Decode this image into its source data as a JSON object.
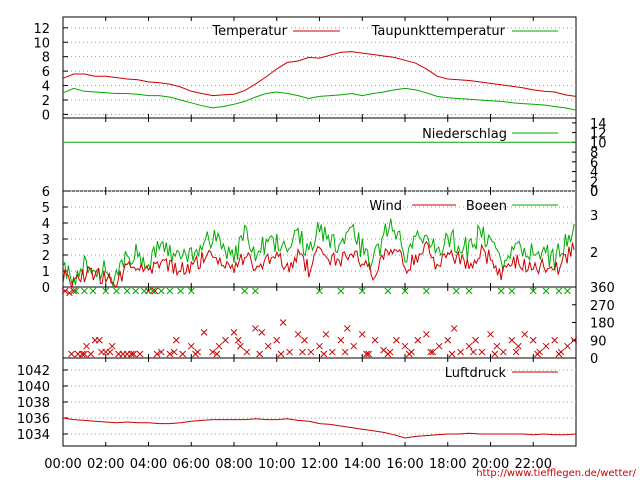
{
  "chart_data": [
    {
      "type": "line",
      "legend_placement": "top-right",
      "y_ticks": [
        "0",
        "2",
        "4",
        "6",
        "8",
        "10",
        "12"
      ],
      "ylim": [
        -0.5,
        13.5
      ],
      "grid": true,
      "series": [
        {
          "name": "Temperatur",
          "color": "#cc0000",
          "x_hours": [
            0,
            0.5,
            1,
            1.5,
            2,
            2.5,
            3,
            3.5,
            4,
            4.5,
            5,
            5.5,
            6,
            6.5,
            7,
            7.5,
            8,
            8.5,
            9,
            9.5,
            10,
            10.5,
            11,
            11.5,
            12,
            12.5,
            13,
            13.5,
            14,
            14.5,
            15,
            15.5,
            16,
            16.5,
            17,
            17.5,
            18,
            18.5,
            19,
            19.5,
            20,
            20.5,
            21,
            21.5,
            22,
            22.5,
            23,
            23.5,
            24
          ],
          "values": [
            5.0,
            5.6,
            5.6,
            5.3,
            5.3,
            5.1,
            4.9,
            4.8,
            4.5,
            4.4,
            4.2,
            3.8,
            3.2,
            2.9,
            2.6,
            2.7,
            2.8,
            3.3,
            4.2,
            5.2,
            6.3,
            7.2,
            7.4,
            7.9,
            7.8,
            8.2,
            8.6,
            8.7,
            8.5,
            8.3,
            8.1,
            7.9,
            7.5,
            7.1,
            6.3,
            5.3,
            4.9,
            4.8,
            4.7,
            4.5,
            4.3,
            4.1,
            3.9,
            3.7,
            3.4,
            3.2,
            3.1,
            2.7,
            2.5
          ]
        },
        {
          "name": "Taupunkttemperatur",
          "color": "#00aa00",
          "x_hours": [
            0,
            0.5,
            1,
            1.5,
            2,
            2.5,
            3,
            3.5,
            4,
            4.5,
            5,
            5.5,
            6,
            6.5,
            7,
            7.5,
            8,
            8.5,
            9,
            9.5,
            10,
            10.5,
            11,
            11.5,
            12,
            12.5,
            13,
            13.5,
            14,
            14.5,
            15,
            15.5,
            16,
            16.5,
            17,
            17.5,
            18,
            18.5,
            19,
            19.5,
            20,
            20.5,
            21,
            21.5,
            22,
            22.5,
            23,
            23.5,
            24
          ],
          "values": [
            3.0,
            3.6,
            3.2,
            3.1,
            3.0,
            2.9,
            2.9,
            2.8,
            2.6,
            2.6,
            2.4,
            2.0,
            1.6,
            1.2,
            0.9,
            1.1,
            1.4,
            1.8,
            2.4,
            2.9,
            3.1,
            2.9,
            2.6,
            2.2,
            2.5,
            2.6,
            2.7,
            2.9,
            2.6,
            2.9,
            3.1,
            3.4,
            3.6,
            3.4,
            3.0,
            2.5,
            2.3,
            2.2,
            2.1,
            2.0,
            1.9,
            1.8,
            1.6,
            1.5,
            1.4,
            1.3,
            1.1,
            0.9,
            0.6
          ]
        }
      ]
    },
    {
      "type": "line",
      "legend_placement": "top-right",
      "right_ticks": [
        "0",
        "2",
        "4",
        "6",
        "8",
        "10",
        "12",
        "14"
      ],
      "ylim": [
        0,
        15
      ],
      "series": [
        {
          "name": "Niederschlag",
          "color": "#00aa00",
          "x_hours": [
            0,
            24
          ],
          "values": [
            10,
            10
          ]
        }
      ]
    },
    {
      "type": "line",
      "legend_placement": "top-right",
      "left_ticks": [
        "0",
        "1",
        "2",
        "3",
        "4",
        "5",
        "6"
      ],
      "right_ticks": [
        "0",
        "2",
        "3"
      ],
      "ylim": [
        0,
        6
      ],
      "grid": true,
      "series": [
        {
          "name": "Wind",
          "color": "#cc0000",
          "x_hours": [
            0,
            0.5,
            1,
            1.5,
            2,
            2.5,
            3,
            3.5,
            4,
            4.5,
            5,
            5.5,
            6,
            6.5,
            7,
            7.5,
            8,
            8.5,
            9,
            9.5,
            10,
            10.5,
            11,
            11.5,
            12,
            12.5,
            13,
            13.5,
            14,
            14.5,
            15,
            15.5,
            16,
            16.5,
            17,
            17.5,
            18,
            18.5,
            19,
            19.5,
            20,
            20.5,
            21,
            21.5,
            22,
            22.5,
            23,
            23.5,
            24
          ],
          "values": [
            0.7,
            0.1,
            0.8,
            0.9,
            0.5,
            0.2,
            1.2,
            1.4,
            0.9,
            1.6,
            1.3,
            1.0,
            1.4,
            1.7,
            2.1,
            1.5,
            1.1,
            2.0,
            1.3,
            1.6,
            1.9,
            1.2,
            2.2,
            1.1,
            2.5,
            1.8,
            1.6,
            2.3,
            1.4,
            0.8,
            2.1,
            2.5,
            1.2,
            1.9,
            2.4,
            1.3,
            2.0,
            1.7,
            1.4,
            2.2,
            1.8,
            0.8,
            1.6,
            1.5,
            1.1,
            1.3,
            0.9,
            1.8,
            2.6
          ]
        },
        {
          "name": "Boeen",
          "color": "#00aa00",
          "x_hours": [
            0,
            0.5,
            1,
            1.5,
            2,
            2.5,
            3,
            3.5,
            4,
            4.5,
            5,
            5.5,
            6,
            6.5,
            7,
            7.5,
            8,
            8.5,
            9,
            9.5,
            10,
            10.5,
            11,
            11.5,
            12,
            12.5,
            13,
            13.5,
            14,
            14.5,
            15,
            15.5,
            16,
            16.5,
            17,
            17.5,
            18,
            18.5,
            19,
            19.5,
            20,
            20.5,
            21,
            21.5,
            22,
            22.5,
            23,
            23.5,
            24
          ],
          "values": [
            1.2,
            0.4,
            1.5,
            1.3,
            0.9,
            0.5,
            1.9,
            2.1,
            1.4,
            2.4,
            2.0,
            1.5,
            2.2,
            2.6,
            3.2,
            2.3,
            1.8,
            3.3,
            2.1,
            2.7,
            2.8,
            2.0,
            3.5,
            2.0,
            3.8,
            3.0,
            2.6,
            3.4,
            2.4,
            1.3,
            3.3,
            3.8,
            2.0,
            3.0,
            3.6,
            2.1,
            3.2,
            2.7,
            2.3,
            3.4,
            3.0,
            1.4,
            2.6,
            2.6,
            1.9,
            2.3,
            1.6,
            2.9,
            4.0
          ]
        }
      ]
    },
    {
      "type": "scatter",
      "right_ticks": [
        "0",
        "90",
        "180",
        "270",
        "360"
      ],
      "ylim": [
        0,
        360
      ],
      "series": [
        {
          "name": "",
          "color": "#cc0000",
          "x_hours": [
            0.1,
            0.3,
            0.5,
            0.7,
            0.9,
            1.1,
            1.3,
            1.5,
            1.7,
            2.0,
            2.3,
            2.6,
            2.8,
            3.0,
            3.3,
            3.6,
            4.0,
            4.3,
            4.6,
            5.0,
            5.3,
            5.6,
            6.0,
            6.3,
            6.6,
            7.0,
            7.3,
            7.6,
            8.0,
            8.3,
            8.6,
            9.0,
            9.3,
            9.6,
            10.0,
            10.3,
            10.6,
            11.0,
            11.3,
            11.6,
            12.0,
            12.3,
            12.6,
            13.0,
            13.3,
            13.6,
            14.0,
            14.3,
            14.6,
            15.0,
            15.3,
            15.6,
            16.0,
            16.3,
            16.6,
            17.0,
            17.3,
            17.6,
            18.0,
            18.3,
            18.6,
            19.0,
            19.3,
            19.6,
            20.0,
            20.3,
            20.6,
            21.0,
            21.3,
            21.6,
            22.0,
            22.3,
            22.6,
            23.0,
            23.3,
            23.6,
            23.9,
            0.4,
            1.0,
            1.8,
            2.2,
            3.2,
            4.4,
            5.2,
            6.2,
            7.2,
            8.2,
            9.2,
            10.2,
            11.2,
            12.2,
            13.2,
            14.2,
            15.2,
            16.2,
            17.2,
            18.2,
            19.2,
            20.2,
            21.2,
            22.2,
            23.2
          ],
          "values": [
            360,
            330,
            360,
            20,
            0,
            60,
            0,
            90,
            90,
            30,
            60,
            0,
            0,
            10,
            0,
            0,
            360,
            360,
            30,
            0,
            90,
            0,
            60,
            30,
            130,
            30,
            60,
            90,
            130,
            60,
            30,
            150,
            130,
            60,
            90,
            180,
            30,
            120,
            90,
            30,
            60,
            120,
            30,
            90,
            150,
            60,
            120,
            0,
            90,
            40,
            30,
            90,
            60,
            30,
            90,
            120,
            30,
            60,
            90,
            150,
            30,
            60,
            90,
            30,
            120,
            60,
            30,
            90,
            60,
            120,
            90,
            30,
            60,
            90,
            30,
            60,
            90,
            0,
            0,
            30,
            30,
            0,
            0,
            30,
            0,
            0,
            90,
            0,
            0,
            30,
            0,
            30,
            0,
            0,
            0,
            30,
            0,
            30,
            0,
            30,
            0,
            0
          ]
        },
        {
          "name": "",
          "color": "#00aa00",
          "x_hours": [
            0.6,
            1.0,
            1.4,
            2.0,
            2.5,
            3.0,
            3.4,
            3.8,
            4.2,
            4.6,
            5.0,
            5.5,
            6.0,
            8.5,
            9.0,
            12.0,
            13.0,
            14.0,
            15.2,
            16.0,
            17.0,
            18.4,
            19.0,
            20.5,
            21.0,
            22.0,
            22.6,
            23.2,
            23.6
          ],
          "values": [
            360,
            360,
            360,
            360,
            360,
            360,
            360,
            360,
            360,
            360,
            360,
            360,
            360,
            360,
            360,
            360,
            360,
            360,
            360,
            360,
            360,
            360,
            360,
            360,
            360,
            360,
            360,
            360,
            360
          ]
        }
      ]
    },
    {
      "type": "line",
      "legend_placement": "top-right",
      "y_ticks": [
        "1034",
        "1036",
        "1038",
        "1040",
        "1042"
      ],
      "ylim": [
        1032.5,
        1043.5
      ],
      "grid": true,
      "series": [
        {
          "name": "Luftdruck",
          "color": "#cc0000",
          "x_hours": [
            0,
            0.5,
            1,
            1.5,
            2,
            2.5,
            3,
            3.5,
            4,
            4.5,
            5,
            5.5,
            6,
            6.5,
            7,
            7.5,
            8,
            8.5,
            9,
            9.5,
            10,
            10.5,
            11,
            11.5,
            12,
            12.5,
            13,
            13.5,
            14,
            14.5,
            15,
            15.5,
            16,
            16.5,
            17,
            17.5,
            18,
            18.5,
            19,
            19.5,
            20,
            20.5,
            21,
            21.5,
            22,
            22.5,
            23,
            23.5,
            24
          ],
          "values": [
            1036.0,
            1035.8,
            1035.7,
            1035.6,
            1035.5,
            1035.4,
            1035.5,
            1035.4,
            1035.4,
            1035.3,
            1035.3,
            1035.4,
            1035.6,
            1035.7,
            1035.8,
            1035.8,
            1035.8,
            1035.8,
            1035.9,
            1035.8,
            1035.8,
            1035.9,
            1035.7,
            1035.6,
            1035.3,
            1035.2,
            1035.0,
            1034.8,
            1034.6,
            1034.4,
            1034.2,
            1033.9,
            1033.5,
            1033.7,
            1033.8,
            1033.9,
            1034.0,
            1034.0,
            1034.1,
            1034.0,
            1034.0,
            1034.0,
            1034.0,
            1034.0,
            1033.9,
            1034.0,
            1033.9,
            1033.9,
            1034.0
          ]
        }
      ]
    }
  ],
  "x_axis": {
    "tick_labels": [
      "00:00",
      "02:00",
      "04:00",
      "06:00",
      "08:00",
      "10:00",
      "12:00",
      "14:00",
      "16:00",
      "18:00",
      "20:00",
      "22:00"
    ]
  },
  "credit": "http://www.tiefflegen.de/wetter/",
  "colors": {
    "red": "#cc0000",
    "green": "#00aa00",
    "grid": "#999999",
    "axis": "#000000"
  }
}
